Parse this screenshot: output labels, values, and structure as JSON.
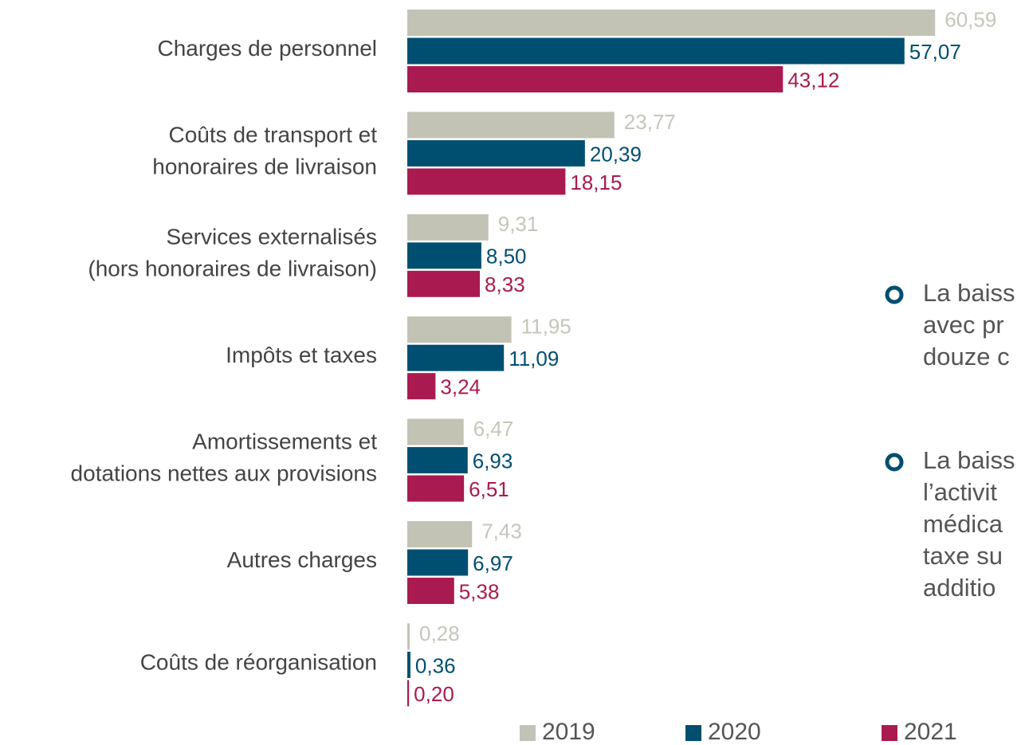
{
  "chart_data": {
    "type": "bar",
    "orientation": "horizontal",
    "categories": [
      [
        "Charges de personnel"
      ],
      [
        "Coûts de transport et",
        "honoraires de livraison"
      ],
      [
        "Services externalisés",
        "(hors honoraires de livraison)"
      ],
      [
        "Impôts et taxes"
      ],
      [
        "Amortissements et",
        "dotations nettes aux provisions"
      ],
      [
        "Autres charges"
      ],
      [
        "Coûts de réorganisation"
      ]
    ],
    "series": [
      {
        "name": "2019",
        "color": "#c2c3b5",
        "label_color": "#c5c6ba",
        "values": [
          60.59,
          23.77,
          9.31,
          11.95,
          6.47,
          7.43,
          0.28
        ],
        "value_labels": [
          "60,59",
          "23,77",
          "9,31",
          "11,95",
          "6,47",
          "7,43",
          "0,28"
        ]
      },
      {
        "name": "2020",
        "color": "#004f71",
        "label_color": "#004f71",
        "values": [
          57.07,
          20.39,
          8.5,
          11.09,
          6.93,
          6.97,
          0.36
        ],
        "value_labels": [
          "57,07",
          "20,39",
          "8,50",
          "11,09",
          "6,93",
          "6,97",
          "0,36"
        ]
      },
      {
        "name": "2021",
        "color": "#a91b50",
        "label_color": "#a91b50",
        "values": [
          43.12,
          18.15,
          8.33,
          3.24,
          6.51,
          5.38,
          0.2
        ],
        "value_labels": [
          "43,12",
          "18,15",
          "8,33",
          "3,24",
          "6,51",
          "5,38",
          "0,20"
        ]
      }
    ],
    "legend": "bottom",
    "annotations": [
      [
        "La baiss",
        "avec pr",
        "douze c"
      ],
      [
        "La baiss",
        "l’activit",
        "médica",
        "taxe su",
        "additio"
      ]
    ],
    "annotation_color": "#004f71"
  }
}
